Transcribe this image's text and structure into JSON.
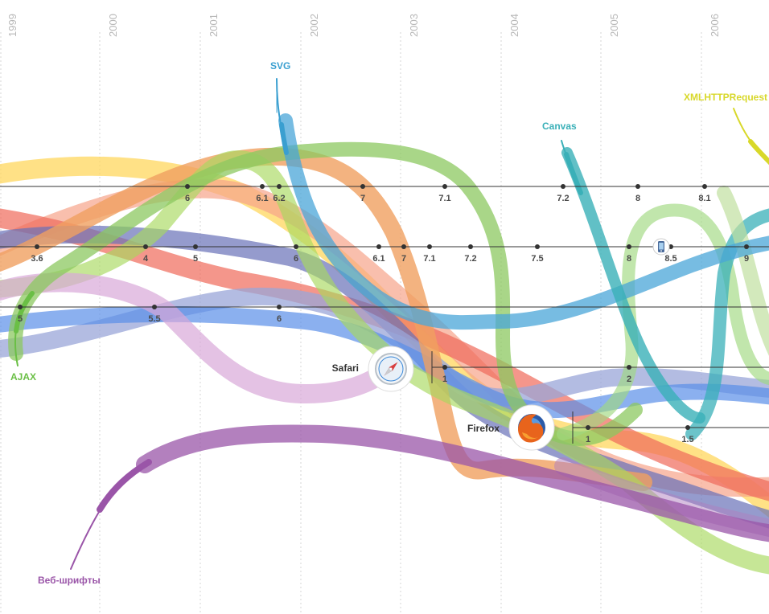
{
  "years": [
    "1999",
    "2000",
    "2001",
    "2002",
    "2003",
    "2004",
    "2005",
    "2006"
  ],
  "features": {
    "svg": {
      "label": "SVG",
      "color": "#3a9fd0"
    },
    "canvas": {
      "label": "Canvas",
      "color": "#3ab0b8"
    },
    "xmlhttp": {
      "label": "XMLHTTPRequest",
      "color": "#d8d82a"
    },
    "ajax": {
      "label": "AJAX",
      "color": "#6abf45"
    },
    "webfonts": {
      "label": "Веб-шрифты",
      "color": "#9a55a8"
    }
  },
  "browsers": {
    "safari": {
      "label": "Safari",
      "icon": "safari-compass-icon"
    },
    "firefox": {
      "label": "Firefox",
      "icon": "firefox-icon"
    },
    "opera_mobile": {
      "icon": "mobile-phone-icon"
    }
  },
  "timelines": {
    "row1": [
      "6",
      "6.1",
      "6.2",
      "7",
      "7.1",
      "7.2",
      "8",
      "8.1"
    ],
    "row2": [
      "3.6",
      "4",
      "5",
      "6",
      "6.1",
      "7",
      "7.1",
      "7.2",
      "7.5",
      "8",
      "8.5",
      "9"
    ],
    "row3": [
      "5",
      "5.5",
      "6"
    ],
    "safari": [
      "1",
      "2"
    ],
    "firefox": [
      "1",
      "1.5"
    ]
  }
}
